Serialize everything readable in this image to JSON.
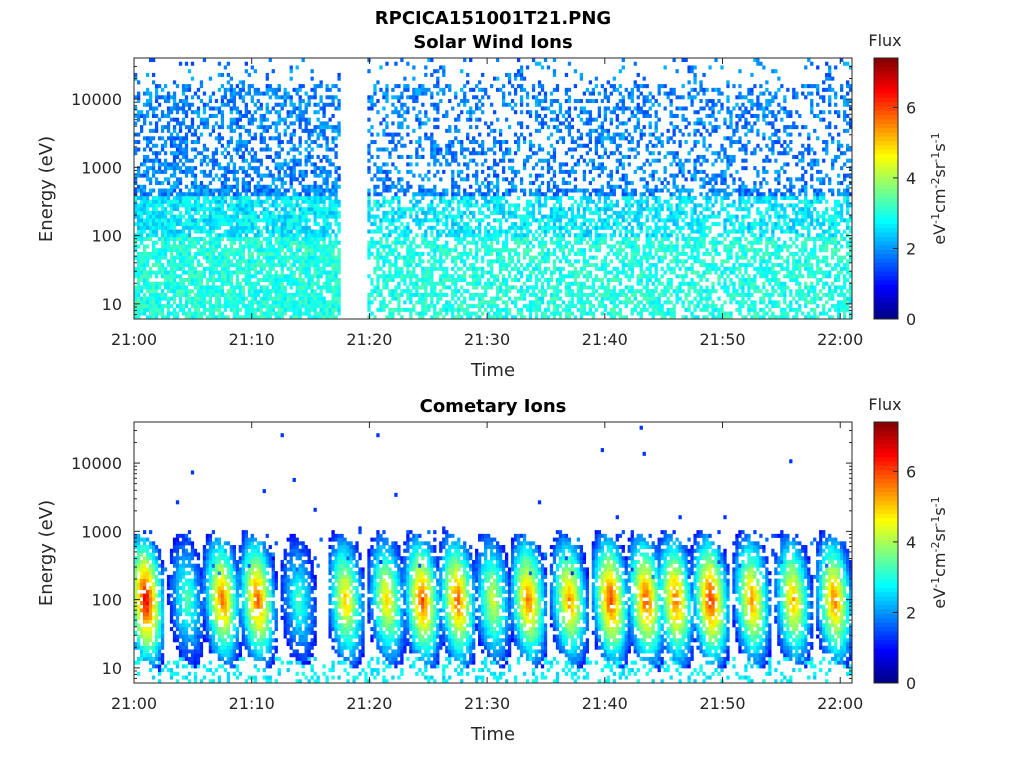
{
  "figure": {
    "filename_title": "RPCICA151001T21.PNG"
  },
  "colorbar": {
    "label": "Flux",
    "unit_parts": [
      "eV",
      "-1",
      "cm",
      "-2",
      "sr",
      "-1",
      "s",
      "-1"
    ],
    "ticks": [
      "0",
      "2",
      "4",
      "6"
    ],
    "range": [
      0,
      7.4
    ],
    "colormap": "jet"
  },
  "chart_data": [
    {
      "type": "heatmap",
      "title": "Solar Wind Ions",
      "xlabel": "Time",
      "ylabel": "Energy (eV)",
      "x_ticks": [
        "21:00",
        "21:10",
        "21:20",
        "21:30",
        "21:40",
        "21:50",
        "22:00"
      ],
      "x_range_min": [
        0,
        61
      ],
      "y_ticks": [
        "10",
        "100",
        "1000",
        "10000"
      ],
      "y_scale": "log",
      "y_range": [
        6,
        40000
      ],
      "data_gap_min": [
        17.5,
        19.8
      ],
      "hotspots": [
        {
          "t": 1.0,
          "e": 60,
          "flux": 3.4
        },
        {
          "t": 7.5,
          "e": 150,
          "flux": 3.0
        },
        {
          "t": 49.0,
          "e": 120,
          "flux": 3.3
        },
        {
          "t": 45.5,
          "e": 60,
          "flux": 3.0
        }
      ],
      "colorbar_ref": "colorbar"
    },
    {
      "type": "heatmap",
      "title": "Cometary Ions",
      "xlabel": "Time",
      "ylabel": "Energy (eV)",
      "x_ticks": [
        "21:00",
        "21:10",
        "21:20",
        "21:30",
        "21:40",
        "21:50",
        "22:00"
      ],
      "x_range_min": [
        0,
        61
      ],
      "y_ticks": [
        "10",
        "100",
        "1000",
        "10000"
      ],
      "y_scale": "log",
      "y_range": [
        6,
        40000
      ],
      "bursts_min": [
        1.0,
        4.5,
        7.5,
        10.5,
        14.0,
        18.0,
        21.5,
        24.5,
        27.5,
        30.5,
        33.5,
        37.0,
        40.5,
        43.5,
        46.0,
        49.0,
        52.5,
        56.0,
        59.5
      ],
      "peak_flux": [
        6.6,
        3.4,
        5.6,
        5.8,
        3.2,
        5.0,
        4.9,
        5.9,
        5.8,
        4.4,
        5.6,
        5.4,
        6.0,
        5.9,
        5.7,
        6.2,
        5.4,
        5.2,
        5.6
      ],
      "colorbar_ref": "colorbar"
    }
  ]
}
